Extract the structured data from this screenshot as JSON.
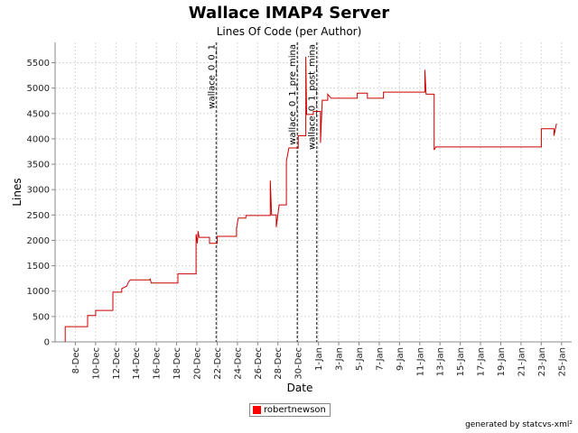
{
  "chart_data": {
    "type": "line",
    "title": "Wallace IMAP4 Server",
    "subtitle": "Lines Of Code (per Author)",
    "xlabel": "Date",
    "ylabel": "Lines",
    "ylim": [
      0,
      5900
    ],
    "yticks": [
      0,
      500,
      1000,
      1500,
      2000,
      2500,
      3000,
      3500,
      4000,
      4500,
      5000,
      5500
    ],
    "xlim": [
      "2004-12-06",
      "2005-01-26"
    ],
    "xtick_labels": [
      "8-Dec",
      "10-Dec",
      "12-Dec",
      "14-Dec",
      "16-Dec",
      "18-Dec",
      "20-Dec",
      "22-Dec",
      "24-Dec",
      "26-Dec",
      "28-Dec",
      "30-Dec",
      "1-Jan",
      "3-Jan",
      "5-Jan",
      "7-Jan",
      "9-Jan",
      "11-Jan",
      "13-Jan",
      "15-Jan",
      "17-Jan",
      "19-Jan",
      "21-Jan",
      "23-Jan",
      "25-Jan"
    ],
    "xtick_dates": [
      "2004-12-08",
      "2004-12-10",
      "2004-12-12",
      "2004-12-14",
      "2004-12-16",
      "2004-12-18",
      "2004-12-20",
      "2004-12-22",
      "2004-12-24",
      "2004-12-26",
      "2004-12-28",
      "2004-12-30",
      "2005-01-01",
      "2005-01-03",
      "2005-01-05",
      "2005-01-07",
      "2005-01-09",
      "2005-01-11",
      "2005-01-13",
      "2005-01-15",
      "2005-01-17",
      "2005-01-19",
      "2005-01-21",
      "2005-01-23",
      "2005-01-25"
    ],
    "grid": true,
    "legend_position": "bottom",
    "series": [
      {
        "name": "robertnewson",
        "color": "#cc0000",
        "points": [
          [
            "2004-12-07T00:00",
            0
          ],
          [
            "2004-12-07T00:00",
            300
          ],
          [
            "2004-12-09T05:00",
            300
          ],
          [
            "2004-12-09T05:00",
            520
          ],
          [
            "2004-12-10T00:00",
            520
          ],
          [
            "2004-12-10T00:00",
            620
          ],
          [
            "2004-12-11T17:00",
            620
          ],
          [
            "2004-12-11T17:00",
            980
          ],
          [
            "2004-12-12T14:00",
            980
          ],
          [
            "2004-12-12T14:00",
            1050
          ],
          [
            "2004-12-13T02:00",
            1100
          ],
          [
            "2004-12-13T06:00",
            1180
          ],
          [
            "2004-12-13T10:00",
            1220
          ],
          [
            "2004-12-15T09:00",
            1220
          ],
          [
            "2004-12-15T09:00",
            1250
          ],
          [
            "2004-12-15T12:00",
            1160
          ],
          [
            "2004-12-18T03:00",
            1160
          ],
          [
            "2004-12-18T03:00",
            1340
          ],
          [
            "2004-12-19T22:00",
            1340
          ],
          [
            "2004-12-19T22:00",
            2120
          ],
          [
            "2004-12-20T01:00",
            1940
          ],
          [
            "2004-12-20T03:00",
            2180
          ],
          [
            "2004-12-20T05:00",
            2060
          ],
          [
            "2004-12-21T06:00",
            2060
          ],
          [
            "2004-12-21T06:00",
            1940
          ],
          [
            "2004-12-22T00:00",
            1940
          ],
          [
            "2004-12-22T00:00",
            2080
          ],
          [
            "2004-12-23T22:00",
            2080
          ],
          [
            "2004-12-23T22:00",
            2240
          ],
          [
            "2004-12-24T02:00",
            2440
          ],
          [
            "2004-12-24T20:00",
            2440
          ],
          [
            "2004-12-24T20:00",
            2490
          ],
          [
            "2004-12-27T06:00",
            2490
          ],
          [
            "2004-12-27T06:00",
            3180
          ],
          [
            "2004-12-27T09:00",
            2500
          ],
          [
            "2004-12-27T20:00",
            2500
          ],
          [
            "2004-12-27T20:00",
            2260
          ],
          [
            "2004-12-28T03:00",
            2700
          ],
          [
            "2004-12-28T20:00",
            2700
          ],
          [
            "2004-12-28T20:00",
            3560
          ],
          [
            "2004-12-29T02:00",
            3820
          ],
          [
            "2004-12-30T00:00",
            3820
          ],
          [
            "2004-12-30T00:00",
            4060
          ],
          [
            "2004-12-30T18:00",
            4060
          ],
          [
            "2004-12-30T18:00",
            5620
          ],
          [
            "2004-12-30T20:00",
            4480
          ],
          [
            "2004-12-31T12:00",
            4480
          ],
          [
            "2004-12-31T12:00",
            4540
          ],
          [
            "2005-01-01T05:00",
            4540
          ],
          [
            "2005-01-01T05:00",
            3920
          ],
          [
            "2005-01-01T09:00",
            4760
          ],
          [
            "2005-01-01T22:00",
            4760
          ],
          [
            "2005-01-01T22:00",
            4880
          ],
          [
            "2005-01-02T06:00",
            4800
          ],
          [
            "2005-01-04T20:00",
            4800
          ],
          [
            "2005-01-04T20:00",
            4900
          ],
          [
            "2005-01-05T20:00",
            4900
          ],
          [
            "2005-01-05T20:00",
            4800
          ],
          [
            "2005-01-07T10:00",
            4800
          ],
          [
            "2005-01-07T10:00",
            4920
          ],
          [
            "2005-01-11T12:00",
            4920
          ],
          [
            "2005-01-11T12:00",
            5360
          ],
          [
            "2005-01-11T15:00",
            4880
          ],
          [
            "2005-01-12T10:00",
            4880
          ],
          [
            "2005-01-12T10:00",
            3780
          ],
          [
            "2005-01-12T14:00",
            3840
          ],
          [
            "2005-01-23T00:00",
            3840
          ],
          [
            "2005-01-23T00:00",
            4200
          ],
          [
            "2005-01-24T06:00",
            4200
          ],
          [
            "2005-01-24T06:00",
            4060
          ],
          [
            "2005-01-24T12:00",
            4300
          ]
        ]
      }
    ],
    "annotations": [
      {
        "label": "wallace_0_0_1",
        "date": "2004-12-21T22:00"
      },
      {
        "label": "wallace_0_1_pre_mina",
        "date": "2004-12-29T22:00"
      },
      {
        "label": "wallace_0_1_post_mina",
        "date": "2004-12-31T20:00"
      }
    ]
  },
  "footer": "generated by statcvs-xml²"
}
